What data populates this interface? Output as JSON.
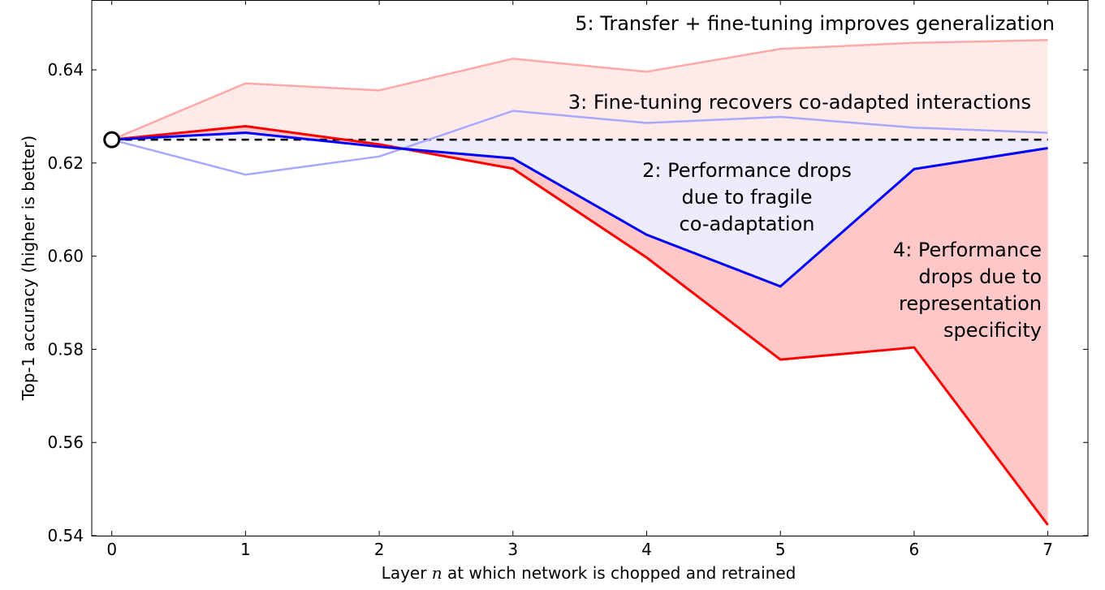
{
  "chart_data": {
    "type": "line",
    "title": "",
    "xlabel": "Layer n at which network is chopped and retrained",
    "xlabel_parts": {
      "before": "Layer ",
      "var": "n",
      "after": " at which network is chopped and retrained"
    },
    "ylabel": "Top-1 accuracy (higher is better)",
    "xlim": [
      -0.15,
      7.3
    ],
    "ylim": [
      0.54,
      0.655
    ],
    "x": [
      0,
      1,
      2,
      3,
      4,
      5,
      6,
      7
    ],
    "x_ticks": [
      "0",
      "1",
      "2",
      "3",
      "4",
      "5",
      "6",
      "7"
    ],
    "y_ticks": [
      0.54,
      0.56,
      0.58,
      0.6,
      0.62,
      0.64
    ],
    "y_tick_labels": [
      "0.54",
      "0.56",
      "0.58",
      "0.60",
      "0.62",
      "0.64"
    ],
    "grid": false,
    "baseline": 0.625,
    "series": [
      {
        "color": "#ffa8a8",
        "values": [
          0.625,
          0.6371,
          0.6356,
          0.6424,
          0.6396,
          0.6445,
          0.6458,
          0.6464
        ]
      },
      {
        "color": "#a8a8ff",
        "values": [
          0.625,
          0.6175,
          0.6214,
          0.6312,
          0.6286,
          0.6299,
          0.6276,
          0.6265
        ]
      },
      {
        "color": "#ff0000",
        "values": [
          0.625,
          0.6279,
          0.624,
          0.6188,
          0.5997,
          0.5778,
          0.5804,
          0.5423
        ]
      },
      {
        "color": "#0000ff",
        "values": [
          0.625,
          0.6265,
          0.6235,
          0.621,
          0.6046,
          0.5935,
          0.6187,
          0.6232
        ]
      }
    ],
    "fill_colors": {
      "transfer": "#ffeaea",
      "coadapt": "#ececfc",
      "specificity": "#ffc8c8"
    },
    "annotations": [
      {
        "lines": [
          "5: Transfer + fine-tuning improves generalization"
        ]
      },
      {
        "lines": [
          "3: Fine-tuning recovers co-adapted interactions"
        ]
      },
      {
        "lines": [
          "2: Performance drops",
          "due to fragile",
          "co-adaptation"
        ]
      },
      {
        "lines": [
          "4: Performance",
          "drops due to",
          "representation",
          "specificity"
        ]
      }
    ]
  }
}
